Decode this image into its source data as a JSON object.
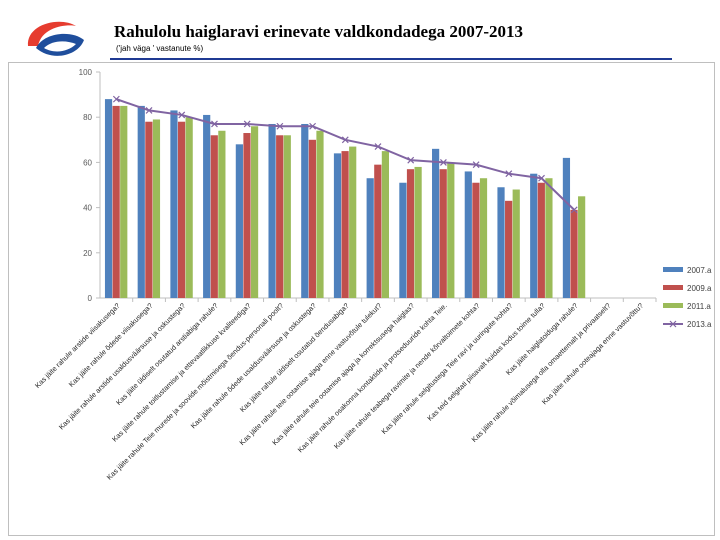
{
  "header": {
    "title": "Rahulolu haiglaravi erinevate valdkondadega 2007-2013",
    "subtitle": "('jah väga ' vastanute %)"
  },
  "colors": {
    "series_2007": "#4f81bd",
    "series_2009": "#c0504d",
    "series_2011": "#9bbb59",
    "series_2013": "#8064a2",
    "logo_red": "#e63c2f",
    "logo_blue": "#1f4e9c",
    "rule": "#1f3a93"
  },
  "chart_data": {
    "type": "bar",
    "title": "",
    "xlabel": "",
    "ylabel": "",
    "ylim": [
      0,
      100
    ],
    "yticks": [
      0,
      20,
      40,
      60,
      80,
      100
    ],
    "grid": false,
    "legend_position": "right",
    "categories": [
      "Kas jäite rahule arstide viisakusega?",
      "Kas jäite rahule õdede viisakusega?",
      "Kas jäite rahule arstide usaldusväärsuse ja oskustega?",
      "Kas jäite üldiselt osutatud arstiabiga rahule?",
      "Kas jäite rahule toitlustamise ja ettevaatlikkuse kvaliteediga?",
      "Kas jäite rahule Teie murede ja soovide mõistmisega õendus-personali poolt?",
      "Kas jäite rahule õdede usaldusväärsuse ja oskustega?",
      "Kas jäite rahule üldiselt osutatud õendusabiga?",
      "Kas jäite rahule teie ootamise ajaga enne vastuvõtule tulekut?",
      "Kas jäite rahule teie ootamise ajaga ja korrektsusega haiglas?",
      "Kas jäite rahule osakonna kontaktide ja protseduuride kohta Teie.",
      "Kas jäite rahule teabega ravimite ja nende kõrvaltoimete kohta?",
      "Kas jäite rahule selgitustega Teie ravi ja uuringute kohta?",
      "Kas teid selgitati piisavalt kuidas kodus toime tulla?",
      "Kas jäite haiglatoiduga rahule?",
      "Kas jäite rahule võimalusega olla omaettemalt ja privaatselt?",
      "Kas jäite rahule ooteajaga enne vastuvõttu?"
    ],
    "series": [
      {
        "name": "2007.a",
        "type": "bar",
        "values": [
          88,
          85,
          83,
          81,
          68,
          77,
          77,
          64,
          53,
          51,
          66,
          56,
          49,
          55,
          62,
          0,
          0
        ]
      },
      {
        "name": "2009.a",
        "type": "bar",
        "values": [
          85,
          78,
          78,
          72,
          73,
          72,
          70,
          65,
          59,
          57,
          57,
          51,
          43,
          51,
          39,
          0,
          0
        ]
      },
      {
        "name": "2011.a",
        "type": "bar",
        "values": [
          85,
          79,
          80,
          74,
          76,
          72,
          74,
          67,
          65,
          58,
          60,
          53,
          48,
          53,
          45,
          0,
          0
        ]
      },
      {
        "name": "2013.a",
        "type": "line",
        "values": [
          88,
          83,
          81,
          77,
          77,
          76,
          76,
          70,
          67,
          61,
          60,
          59,
          55,
          53,
          39,
          null,
          null
        ]
      }
    ]
  }
}
